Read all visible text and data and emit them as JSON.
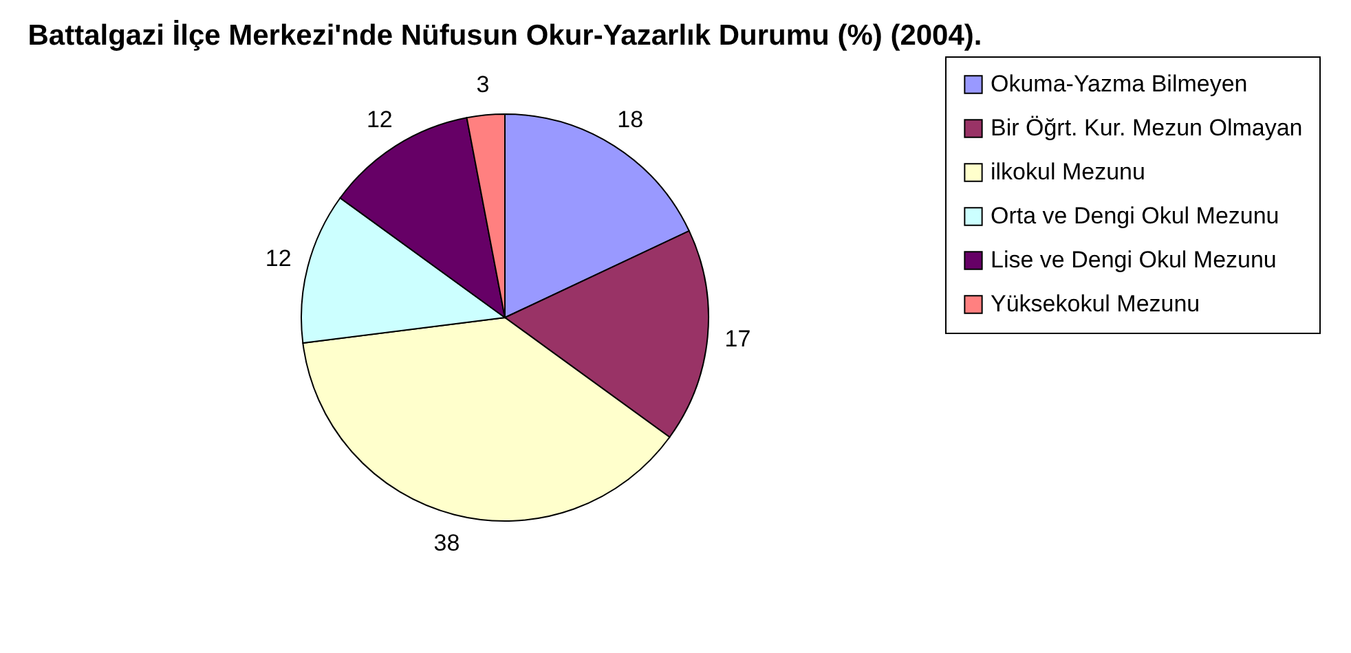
{
  "chart_data": {
    "type": "pie",
    "title": "Battalgazi İlçe Merkezi'nde Nüfusun Okur-Yazarlık Durumu (%) (2004).",
    "categories": [
      "Okuma-Yazma Bilmeyen",
      "Bir Öğrt. Kur. Mezun Olmayan",
      "ilkokul Mezunu",
      "Orta ve Dengi Okul Mezunu",
      "Lise ve Dengi Okul Mezunu",
      "Yüksekokul Mezunu"
    ],
    "values": [
      18,
      17,
      38,
      12,
      12,
      3
    ],
    "colors": [
      "#9999ff",
      "#993366",
      "#ffffcc",
      "#ccffff",
      "#660066",
      "#ff8080"
    ],
    "data_labels": true,
    "legend": "right"
  }
}
